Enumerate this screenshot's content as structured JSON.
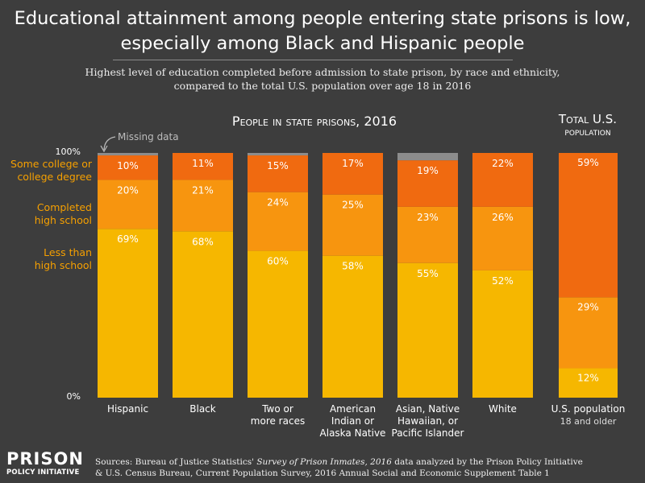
{
  "title": {
    "line1": "Educational attainment among people entering state prisons is low,",
    "line2": "especially among Black and Hispanic people"
  },
  "subtitle": {
    "line1": "Highest level of education completed before admission to state prison, by race and ethnicity,",
    "line2": "compared to the total U.S. population over age 18 in 2016"
  },
  "colors": {
    "background": "#3d3d3d",
    "less_than_high_school": "#f6b700",
    "completed_high_school": "#f7950f",
    "some_college": "#f06a10",
    "missing": "#8c8c8c",
    "legend_text": "#f6a000"
  },
  "chart_data": [
    {
      "type": "bar",
      "stacked": true,
      "percent_stacked": true,
      "title": "People in state prisons, 2016",
      "categories": [
        "Hispanic",
        "Black",
        "Two or more races",
        "American Indian or Alaska Native",
        "Asian, Native Hawaiian, or Pacific Islander",
        "White"
      ],
      "category_label_lines": [
        [
          "Hispanic"
        ],
        [
          "Black"
        ],
        [
          "Two or",
          "more races"
        ],
        [
          "American",
          "Indian or",
          "Alaska Native"
        ],
        [
          "Asian, Native",
          "Hawaiian, or",
          "Pacific Islander"
        ],
        [
          "White"
        ]
      ],
      "series": [
        {
          "name": "Less than high school",
          "values": [
            69,
            68,
            60,
            58,
            55,
            52
          ]
        },
        {
          "name": "Completed high school",
          "values": [
            20,
            21,
            24,
            25,
            23,
            26
          ]
        },
        {
          "name": "Some college or college degree",
          "values": [
            10,
            11,
            15,
            17,
            19,
            22
          ]
        },
        {
          "name": "Missing data",
          "values": [
            1,
            0,
            1,
            0,
            3,
            0
          ]
        }
      ],
      "ylim": [
        0,
        100
      ],
      "y_tick_labels": [
        "0%",
        "100%"
      ],
      "legend": {
        "placement": "left",
        "entries": [
          {
            "series": "Some college or college degree",
            "lines": [
              "Some college or",
              "college degree"
            ]
          },
          {
            "series": "Completed high school",
            "lines": [
              "Completed",
              "high school"
            ]
          },
          {
            "series": "Less than high school",
            "lines": [
              "Less than",
              "high school"
            ]
          }
        ],
        "missing_label": "Missing data"
      }
    },
    {
      "type": "bar",
      "stacked": true,
      "percent_stacked": true,
      "title": "Total U.S. population",
      "title_lines": [
        "Total U.S.",
        "population"
      ],
      "categories": [
        "U.S. population 18 and older"
      ],
      "category_label_lines": [
        [
          "U.S. population"
        ]
      ],
      "category_sublabel": "18 and older",
      "series": [
        {
          "name": "Less than high school",
          "values": [
            12
          ]
        },
        {
          "name": "Completed high school",
          "values": [
            29
          ]
        },
        {
          "name": "Some college or college degree",
          "values": [
            59
          ]
        }
      ],
      "ylim": [
        0,
        100
      ]
    }
  ],
  "footer": {
    "logo_line1": "PRISON",
    "logo_line2": "POLICY INITIATIVE",
    "sources_prefix": "Sources: Bureau of Justice Statistics' ",
    "sources_italic": "Survey of Prison Inmates, 2016",
    "sources_rest": " data analyzed by the Prison Policy Initiative",
    "sources_line2": "& U.S. Census Bureau, Current Population Survey, 2016 Annual Social and Economic Supplement Table 1"
  }
}
